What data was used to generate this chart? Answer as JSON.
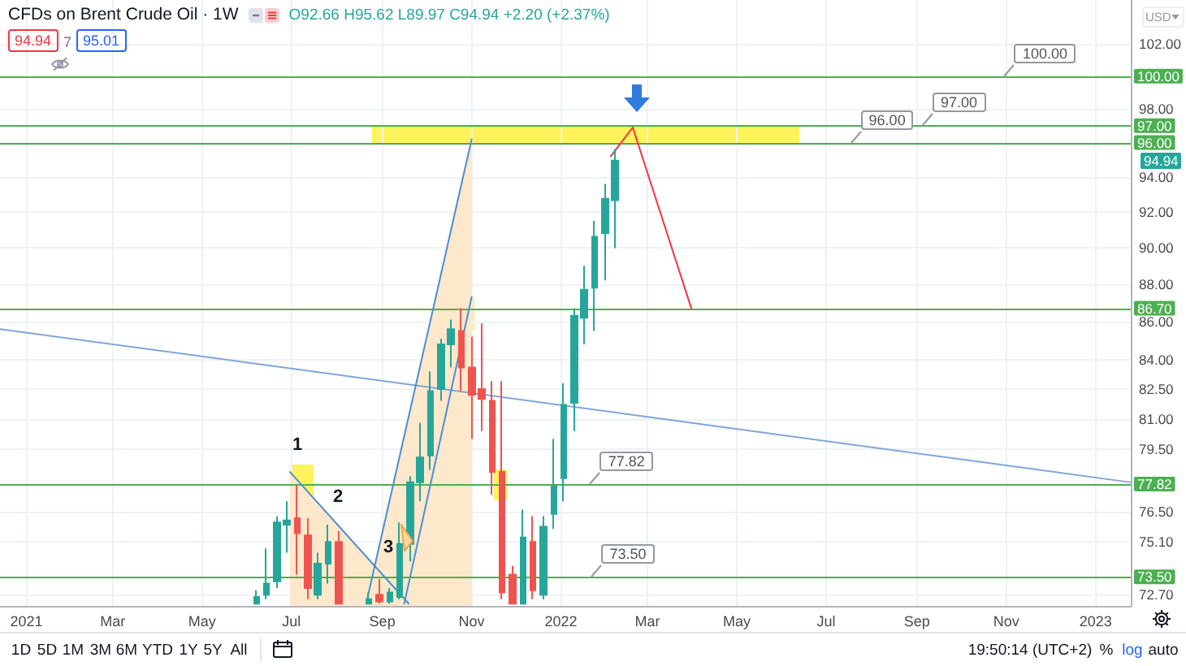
{
  "chart_data": {
    "type": "candlestick",
    "title": "CFDs on Brent Crude Oil · 1W",
    "subtitle": "O92.66 H95.62 L89.97 C94.94 +2.20 (+2.37%)",
    "x": [
      "2021-06-07",
      "2021-06-14",
      "2021-06-21",
      "2021-06-28",
      "2021-07-05",
      "2021-07-12",
      "2021-07-19",
      "2021-07-26",
      "2021-08-02",
      "2021-08-23",
      "2021-08-30",
      "2021-09-06",
      "2021-09-13",
      "2021-09-20",
      "2021-09-27",
      "2021-10-04",
      "2021-10-11",
      "2021-10-18",
      "2021-10-25",
      "2021-11-01",
      "2021-11-08",
      "2021-11-15",
      "2021-11-22",
      "2021-11-29",
      "2021-12-06",
      "2021-12-13",
      "2021-12-20",
      "2021-12-27",
      "2022-01-03",
      "2022-01-10",
      "2022-01-17",
      "2022-01-24",
      "2022-01-31",
      "2022-02-07"
    ],
    "ohlc": [
      [
        72.3,
        72.9,
        72.3,
        72.6
      ],
      [
        72.7,
        74.8,
        72.5,
        73.2
      ],
      [
        73.3,
        76.3,
        73.0,
        76.0
      ],
      [
        75.9,
        77.0,
        74.6,
        76.1
      ],
      [
        76.2,
        77.8,
        73.6,
        75.5
      ],
      [
        75.4,
        76.2,
        72.5,
        73.0
      ],
      [
        72.7,
        74.6,
        72.5,
        74.1
      ],
      [
        74.1,
        75.9,
        73.2,
        75.1
      ],
      [
        75.1,
        75.6,
        72.3,
        72.3
      ],
      [
        72.3,
        72.8,
        72.3,
        72.5
      ],
      [
        72.7,
        73.4,
        72.3,
        72.4
      ],
      [
        72.4,
        73.0,
        72.3,
        72.8
      ],
      [
        72.6,
        76.0,
        72.5,
        75.0
      ],
      [
        75.0,
        78.2,
        74.2,
        77.9
      ],
      [
        77.9,
        80.8,
        77.0,
        79.1
      ],
      [
        79.2,
        83.4,
        78.5,
        82.4
      ],
      [
        82.5,
        85.1,
        81.9,
        84.8
      ],
      [
        84.8,
        86.1,
        83.6,
        85.6
      ],
      [
        85.5,
        86.7,
        82.4,
        83.6
      ],
      [
        83.6,
        85.2,
        80.0,
        82.2
      ],
      [
        82.5,
        85.9,
        80.4,
        82.0
      ],
      [
        81.9,
        82.9,
        77.3,
        78.4
      ],
      [
        78.4,
        82.9,
        72.5,
        72.8
      ],
      [
        73.6,
        74.0,
        72.3,
        72.3
      ],
      [
        72.3,
        76.6,
        72.3,
        75.3
      ],
      [
        75.1,
        76.3,
        72.5,
        72.9
      ],
      [
        72.7,
        76.3,
        72.5,
        75.8
      ],
      [
        76.4,
        80.0,
        75.7,
        77.7
      ],
      [
        78.1,
        82.8,
        77.0,
        81.7
      ],
      [
        81.8,
        86.7,
        80.4,
        86.3
      ],
      [
        86.2,
        89.0,
        84.8,
        87.7
      ],
      [
        87.8,
        91.5,
        85.5,
        90.6
      ],
      [
        90.8,
        93.6,
        88.2,
        92.74
      ],
      [
        92.66,
        95.62,
        89.97,
        94.94
      ]
    ],
    "colors": [
      "#26a69a",
      "#26a69a",
      "#26a69a",
      "#26a69a",
      "#ef5350",
      "#ef5350",
      "#26a69a",
      "#26a69a",
      "#ef5350",
      "#26a69a",
      "#ef5350",
      "#26a69a",
      "#26a69a",
      "#26a69a",
      "#26a69a",
      "#26a69a",
      "#26a69a",
      "#26a69a",
      "#ef5350",
      "#ef5350",
      "#ef5350",
      "#ef5350",
      "#ef5350",
      "#ef5350",
      "#26a69a",
      "#ef5350",
      "#26a69a",
      "#26a69a",
      "#26a69a",
      "#26a69a",
      "#26a69a",
      "#26a69a",
      "#26a69a",
      "#26a69a"
    ],
    "xlim": [
      "2020-12-14",
      "2023-01-25"
    ],
    "ylim": [
      72.2,
      104.8
    ],
    "log": true,
    "grid": true,
    "xticks": [
      {
        "value": "2021-01-01",
        "label": "2021"
      },
      {
        "value": "2021-03-01",
        "label": "Mar"
      },
      {
        "value": "2021-05-01",
        "label": "May"
      },
      {
        "value": "2021-07-01",
        "label": "Jul"
      },
      {
        "value": "2021-09-01",
        "label": "Sep"
      },
      {
        "value": "2021-11-01",
        "label": "Nov"
      },
      {
        "value": "2022-01-01",
        "label": "2022"
      },
      {
        "value": "2022-03-01",
        "label": "Mar"
      },
      {
        "value": "2022-05-01",
        "label": "May"
      },
      {
        "value": "2022-07-01",
        "label": "Jul"
      },
      {
        "value": "2022-09-01",
        "label": "Sep"
      },
      {
        "value": "2022-11-01",
        "label": "Nov"
      },
      {
        "value": "2023-01-01",
        "label": "2023"
      }
    ],
    "yticks": [
      {
        "value": 72.7,
        "label": "72.70"
      },
      {
        "value": 75.1,
        "label": "75.10"
      },
      {
        "value": 76.5,
        "label": "76.50"
      },
      {
        "value": 79.5,
        "label": "79.50"
      },
      {
        "value": 81,
        "label": "81.00"
      },
      {
        "value": 82.5,
        "label": "82.50"
      },
      {
        "value": 84,
        "label": "84.00"
      },
      {
        "value": 86,
        "label": "86.00"
      },
      {
        "value": 88,
        "label": "88.00"
      },
      {
        "value": 90,
        "label": "90.00"
      },
      {
        "value": 92,
        "label": "92.00"
      },
      {
        "value": 94,
        "label": "94.00"
      },
      {
        "value": 98,
        "label": "98.00"
      },
      {
        "value": 102,
        "label": "102.00"
      }
    ],
    "ref_lines": [
      {
        "axis": "y",
        "value": 100,
        "label": "100.00",
        "color": "#4caf50"
      },
      {
        "axis": "y",
        "value": 97,
        "label": "97.00",
        "color": "#4caf50"
      },
      {
        "axis": "y",
        "value": 96,
        "label": "96.00",
        "color": "#4caf50"
      },
      {
        "axis": "y",
        "value": 86.7,
        "label": "86.70",
        "color": "#4caf50"
      },
      {
        "axis": "y",
        "value": 77.82,
        "label": "77.82",
        "color": "#4caf50"
      },
      {
        "axis": "y",
        "value": 73.5,
        "label": "73.50",
        "color": "#4caf50"
      }
    ],
    "series": [
      {
        "type": "area",
        "color": "#fde8cc",
        "x": [
          "2021-06-30",
          "2021-09-19"
        ],
        "values": [
          78.4,
          72.3
        ]
      },
      {
        "type": "area",
        "color": "#fde8cc",
        "x": [
          "2021-08-21",
          "2021-11-01"
        ],
        "values": [
          72.3,
          96.2
        ]
      },
      {
        "type": "line",
        "color": "#7fa6d9",
        "x": [
          "2020-12-14",
          "2023-01-25"
        ],
        "values": [
          85.6,
          77.9
        ]
      },
      {
        "type": "line",
        "color": "#4b8fd1",
        "x": [
          "2021-08-21",
          "2021-11-01"
        ],
        "values": [
          72.3,
          96.2
        ]
      },
      {
        "type": "line",
        "color": "#4a8ed6",
        "x": [
          "2021-09-16",
          "2021-11-01"
        ],
        "values": [
          72.3,
          87.3
        ]
      },
      {
        "type": "line",
        "color": "#4f8fcc",
        "x": [
          "2021-06-30",
          "2021-09-19"
        ],
        "values": [
          78.4,
          72.3
        ]
      },
      {
        "type": "line",
        "color": "#f23645",
        "x": [
          "2022-02-04",
          "2022-02-19",
          "2022-03-31"
        ],
        "values": [
          95.2,
          96.9,
          86.7
        ]
      }
    ],
    "annotations": [
      "94.94",
      "7",
      "95.01",
      "USD",
      "1D",
      "5D",
      "1M",
      "3M",
      "6M",
      "YTD",
      "1Y",
      "5Y",
      "All",
      "19:50:14 (UTC+2)",
      "%",
      "log",
      "auto",
      "1",
      "2",
      "3",
      "94.94",
      {
        "text": "100.00",
        "x": "2022-10-31",
        "y": 100
      },
      {
        "text": "97.00",
        "x": "2022-09-05",
        "y": 97
      },
      {
        "text": "96.00",
        "x": "2022-07-18",
        "y": 96
      },
      {
        "text": "77.82",
        "x": "2022-01-21",
        "y": 77.82
      },
      {
        "text": "73.50",
        "x": "2022-01-22",
        "y": 73.5
      }
    ]
  }
}
